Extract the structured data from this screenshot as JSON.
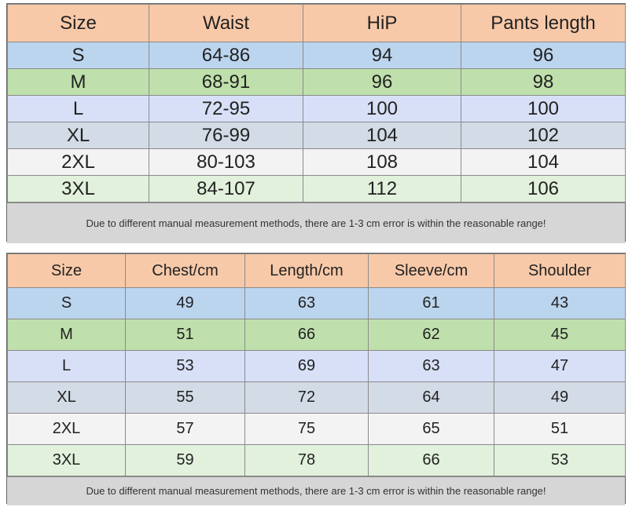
{
  "colors": {
    "header": "#f8c9a8",
    "S": "#bcd5ef",
    "M": "#bfe0ac",
    "L": "#d7e0f7",
    "XL": "#d2dbe6",
    "2XL": "#f3f3f3",
    "3XL": "#e1f1dc",
    "note_bg": "#d6d6d6"
  },
  "pants_table": {
    "headers": [
      "Size",
      "Waist",
      "HiP",
      "Pants length"
    ],
    "rows": [
      [
        "S",
        "64-86",
        "94",
        "96"
      ],
      [
        "M",
        "68-91",
        "96",
        "98"
      ],
      [
        "L",
        "72-95",
        "100",
        "100"
      ],
      [
        "XL",
        "76-99",
        "104",
        "102"
      ],
      [
        "2XL",
        "80-103",
        "108",
        "104"
      ],
      [
        "3XL",
        "84-107",
        "112",
        "106"
      ]
    ],
    "note": "Due to different manual measurement methods, there are 1-3 cm error is within the reasonable range!"
  },
  "top_table": {
    "headers": [
      "Size",
      "Chest/cm",
      "Length/cm",
      "Sleeve/cm",
      "Shoulder"
    ],
    "rows": [
      [
        "S",
        "49",
        "63",
        "61",
        "43"
      ],
      [
        "M",
        "51",
        "66",
        "62",
        "45"
      ],
      [
        "L",
        "53",
        "69",
        "63",
        "47"
      ],
      [
        "XL",
        "55",
        "72",
        "64",
        "49"
      ],
      [
        "2XL",
        "57",
        "75",
        "65",
        "51"
      ],
      [
        "3XL",
        "59",
        "78",
        "66",
        "53"
      ]
    ],
    "note": "Due to different manual measurement methods, there are 1-3 cm error is within the reasonable range!"
  }
}
